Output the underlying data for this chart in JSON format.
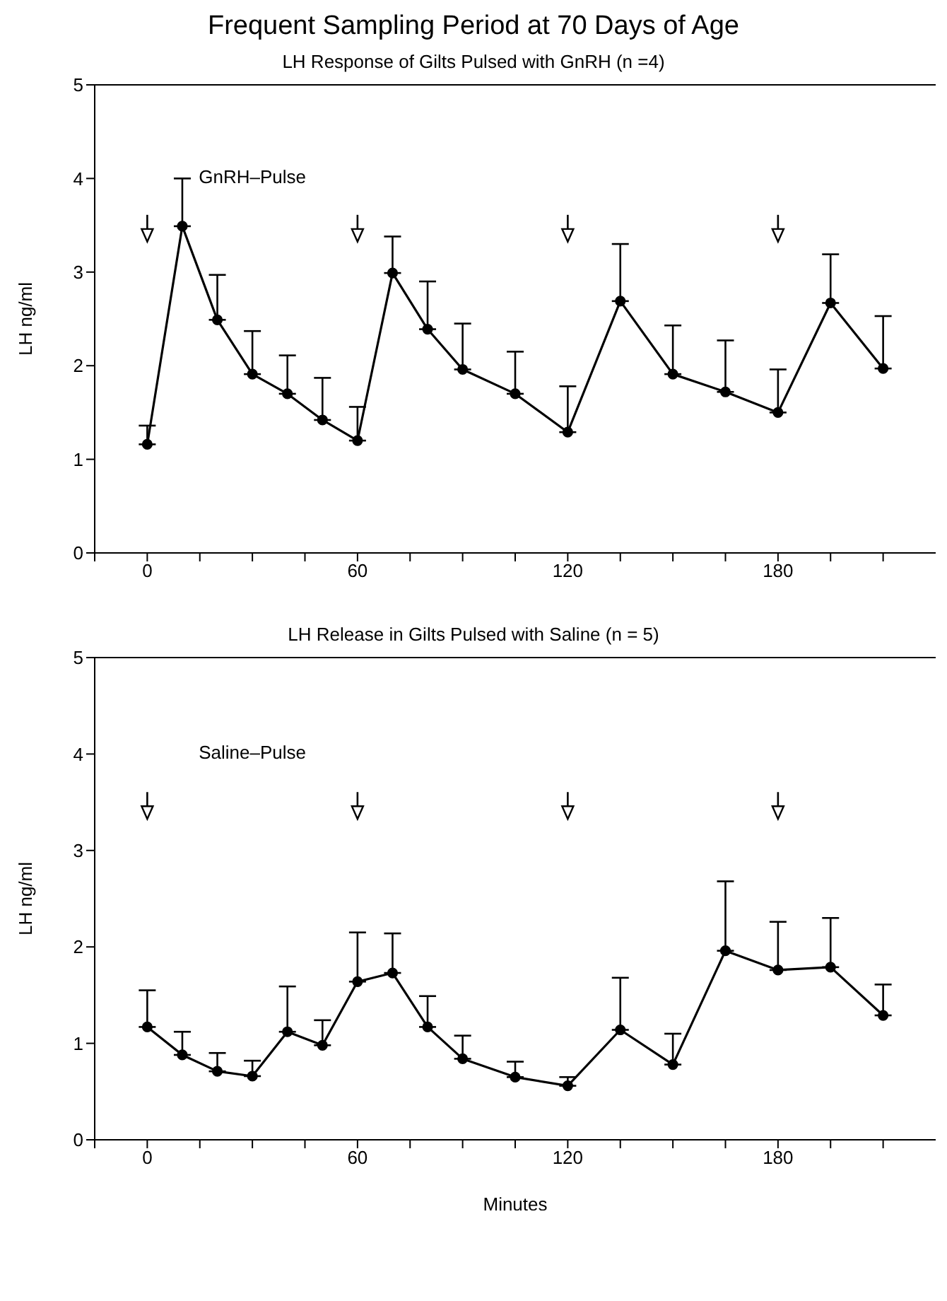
{
  "chart_data": [
    {
      "type": "line",
      "title": "Frequent Sampling Period at 70 Days of Age",
      "subtitle": "LH Response of Gilts Pulsed with GnRH (n =4)",
      "ylabel": "LH ng/ml",
      "annotations": [
        "GnRH–Pulse"
      ],
      "marker": "circle",
      "line_style": "solid",
      "x": [
        0,
        10,
        20,
        30,
        40,
        50,
        60,
        70,
        80,
        90,
        105,
        120,
        135,
        150,
        165,
        180,
        195,
        210
      ],
      "series": [
        {
          "color": "#000000",
          "values": [
            1.16,
            3.49,
            2.49,
            1.91,
            1.7,
            1.42,
            1.2,
            2.99,
            2.39,
            1.96,
            1.7,
            1.29,
            2.69,
            1.91,
            1.72,
            1.5,
            2.67,
            1.97
          ],
          "errors": [
            [
              1.16,
              1.36
            ],
            [
              3.49,
              4.0
            ],
            [
              2.49,
              2.97
            ],
            [
              1.91,
              2.37
            ],
            [
              1.7,
              2.11
            ],
            [
              1.42,
              1.87
            ],
            [
              1.2,
              1.56
            ],
            [
              2.99,
              3.38
            ],
            [
              2.39,
              2.9
            ],
            [
              1.96,
              2.45
            ],
            [
              1.7,
              2.15
            ],
            [
              1.29,
              1.78
            ],
            [
              2.69,
              3.3
            ],
            [
              1.91,
              2.43
            ],
            [
              1.72,
              2.27
            ],
            [
              1.5,
              1.96
            ],
            [
              2.67,
              3.19
            ],
            [
              1.97,
              2.53
            ]
          ]
        }
      ],
      "xlim": [
        -15,
        225
      ],
      "xticks": [
        {
          "value": -15,
          "label": null
        },
        0,
        {
          "value": 15,
          "label": null
        },
        {
          "value": 30,
          "label": null
        },
        {
          "value": 45,
          "label": null
        },
        60,
        {
          "value": 75,
          "label": null
        },
        {
          "value": 90,
          "label": null
        },
        {
          "value": 105,
          "label": null
        },
        120,
        {
          "value": 135,
          "label": null
        },
        {
          "value": 150,
          "label": null
        },
        {
          "value": 165,
          "label": null
        },
        180,
        {
          "value": 195,
          "label": null
        },
        {
          "value": 210,
          "label": null
        }
      ],
      "ylim": [
        0,
        5
      ],
      "yticks": [
        0,
        1,
        2,
        3,
        4,
        5
      ]
    },
    {
      "type": "line",
      "subtitle": "LH Release in Gilts Pulsed with Saline (n = 5)",
      "xlabel": "Minutes",
      "ylabel": "LH ng/ml",
      "annotations": [
        "Saline–Pulse"
      ],
      "marker": "circle",
      "line_style": "solid",
      "x": [
        0,
        10,
        20,
        30,
        40,
        50,
        60,
        70,
        80,
        90,
        105,
        120,
        135,
        150,
        165,
        180,
        195,
        210
      ],
      "series": [
        {
          "color": "#000000",
          "values": [
            1.17,
            0.88,
            0.71,
            0.66,
            1.12,
            0.98,
            1.64,
            1.73,
            1.17,
            0.84,
            0.65,
            0.56,
            1.14,
            0.78,
            1.96,
            1.76,
            1.79,
            1.29
          ],
          "errors": [
            [
              1.17,
              1.55
            ],
            [
              0.88,
              1.12
            ],
            [
              0.71,
              0.9
            ],
            [
              0.66,
              0.82
            ],
            [
              1.12,
              1.59
            ],
            [
              0.98,
              1.24
            ],
            [
              1.64,
              2.15
            ],
            [
              1.73,
              2.14
            ],
            [
              1.17,
              1.49
            ],
            [
              0.84,
              1.08
            ],
            [
              0.65,
              0.81
            ],
            [
              0.56,
              0.65
            ],
            [
              1.14,
              1.68
            ],
            [
              0.78,
              1.1
            ],
            [
              1.96,
              2.68
            ],
            [
              1.76,
              2.26
            ],
            [
              1.79,
              2.3
            ],
            [
              1.29,
              1.61
            ]
          ]
        }
      ],
      "xlim": [
        -15,
        225
      ],
      "xticks": [
        {
          "value": -15,
          "label": null
        },
        0,
        {
          "value": 15,
          "label": null
        },
        {
          "value": 30,
          "label": null
        },
        {
          "value": 45,
          "label": null
        },
        60,
        {
          "value": 75,
          "label": null
        },
        {
          "value": 90,
          "label": null
        },
        {
          "value": 105,
          "label": null
        },
        120,
        {
          "value": 135,
          "label": null
        },
        {
          "value": 150,
          "label": null
        },
        {
          "value": 165,
          "label": null
        },
        180,
        {
          "value": 195,
          "label": null
        },
        {
          "value": 210,
          "label": null
        }
      ],
      "ylim": [
        0,
        5
      ],
      "yticks": [
        0,
        1,
        2,
        3,
        4,
        5
      ]
    }
  ]
}
